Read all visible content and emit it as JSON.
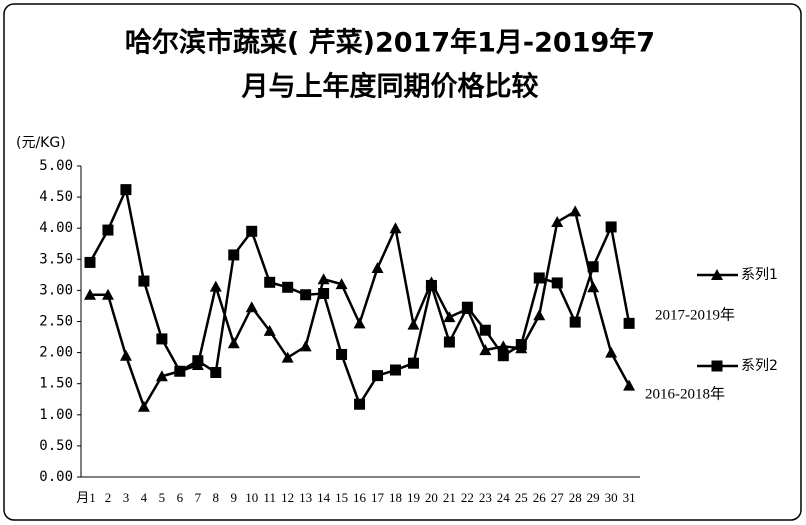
{
  "chart_data": {
    "type": "line",
    "title": [
      "哈尔滨市蔬菜( 芹菜)2017年1月-2019年7",
      "月与上年度同期价格比较"
    ],
    "y_label": "(元/KG)",
    "categories": [
      "月1",
      "2",
      "3",
      "4",
      "5",
      "6",
      "7",
      "8",
      "9",
      "10",
      "11",
      "12",
      "13",
      "14",
      "15",
      "16",
      "17",
      "18",
      "19",
      "20",
      "21",
      "22",
      "23",
      "24",
      "25",
      "26",
      "27",
      "28",
      "29",
      "30",
      "31"
    ],
    "series": [
      {
        "name": "系列1",
        "color": "#000000",
        "marker": "triangle",
        "values": [
          2.93,
          2.93,
          1.95,
          1.13,
          1.62,
          1.7,
          1.8,
          3.06,
          2.15,
          2.73,
          2.35,
          1.92,
          2.1,
          3.18,
          3.1,
          2.47,
          3.36,
          4.0,
          2.45,
          3.13,
          2.57,
          2.7,
          2.04,
          2.1,
          2.07,
          2.6,
          4.1,
          4.27,
          3.05,
          2.0,
          1.47
        ]
      },
      {
        "name": "系列2",
        "color": "#000000",
        "marker": "square",
        "values": [
          3.45,
          3.97,
          4.62,
          3.15,
          2.22,
          1.7,
          1.87,
          1.68,
          3.57,
          3.95,
          3.13,
          3.05,
          2.93,
          2.95,
          1.97,
          1.17,
          1.63,
          1.72,
          1.83,
          3.08,
          2.17,
          2.73,
          2.36,
          1.95,
          2.13,
          3.2,
          3.12,
          2.49,
          3.38,
          4.02,
          2.47
        ]
      }
    ],
    "annotations": [
      "2017-2019年",
      "2016-2018年"
    ],
    "ylim": [
      0,
      5
    ],
    "yticks": [
      {
        "value": 0,
        "label": "0.00"
      },
      {
        "value": 0.5,
        "label": "0.50"
      },
      {
        "value": 1,
        "label": "1.00"
      },
      {
        "value": 1.5,
        "label": "1.50"
      },
      {
        "value": 2,
        "label": "2.00"
      },
      {
        "value": 2.5,
        "label": "2.50"
      },
      {
        "value": 3,
        "label": "3.00"
      },
      {
        "value": 3.5,
        "label": "3.50"
      },
      {
        "value": 4,
        "label": "4.00"
      },
      {
        "value": 4.5,
        "label": "4.50"
      },
      {
        "value": 5,
        "label": "5.00"
      }
    ],
    "grid": false
  }
}
